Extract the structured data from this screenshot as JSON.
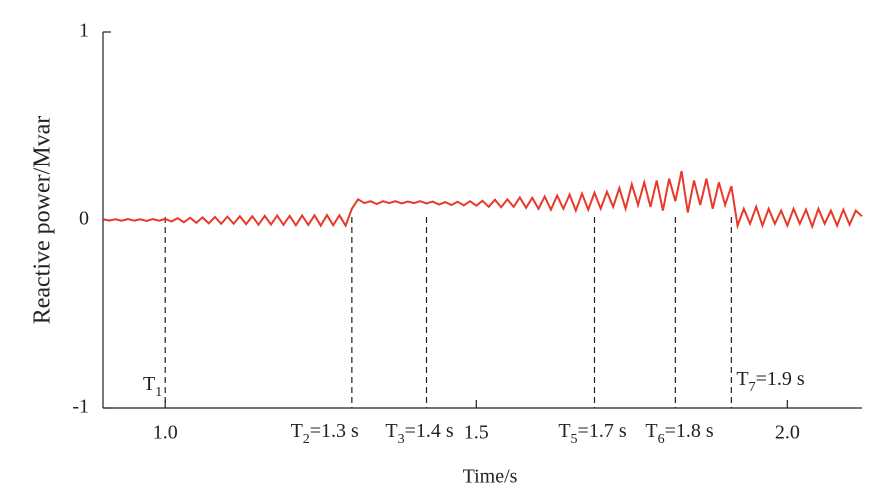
{
  "chart_data": {
    "type": "line",
    "x_label": "Time/s",
    "y_label": "Reactive power/Mvar",
    "xlim": [
      0.9,
      2.12
    ],
    "ylim": [
      -1,
      1
    ],
    "xticks": [
      {
        "value": 1,
        "label": "1.0"
      },
      {
        "value": 1.5,
        "label": "1.5"
      },
      {
        "value": 2,
        "label": "2.0"
      }
    ],
    "yticks": [
      -1,
      0,
      1
    ],
    "x": [
      0.9,
      0.91,
      0.92,
      0.93,
      0.94,
      0.95,
      0.96,
      0.97,
      0.98,
      0.99,
      1.0,
      1.01,
      1.02,
      1.03,
      1.04,
      1.05,
      1.06,
      1.07,
      1.08,
      1.09,
      1.1,
      1.11,
      1.12,
      1.13,
      1.14,
      1.15,
      1.16,
      1.17,
      1.18,
      1.19,
      1.2,
      1.21,
      1.22,
      1.23,
      1.24,
      1.25,
      1.26,
      1.27,
      1.28,
      1.29,
      1.3,
      1.31,
      1.32,
      1.33,
      1.34,
      1.35,
      1.36,
      1.37,
      1.38,
      1.39,
      1.4,
      1.41,
      1.42,
      1.43,
      1.44,
      1.45,
      1.46,
      1.47,
      1.48,
      1.49,
      1.5,
      1.51,
      1.52,
      1.53,
      1.54,
      1.55,
      1.56,
      1.57,
      1.58,
      1.59,
      1.6,
      1.61,
      1.62,
      1.63,
      1.64,
      1.65,
      1.66,
      1.67,
      1.68,
      1.69,
      1.7,
      1.71,
      1.72,
      1.73,
      1.74,
      1.75,
      1.76,
      1.77,
      1.78,
      1.79,
      1.8,
      1.81,
      1.82,
      1.83,
      1.84,
      1.85,
      1.86,
      1.87,
      1.88,
      1.89,
      1.9,
      1.91,
      1.92,
      1.93,
      1.94,
      1.95,
      1.96,
      1.97,
      1.98,
      1.99,
      2.0,
      2.01,
      2.02,
      2.03,
      2.04,
      2.05,
      2.06,
      2.07,
      2.08,
      2.09,
      2.1,
      2.11,
      2.12
    ],
    "series": [
      {
        "color": "#e8392b",
        "values": [
          0.005,
          -0.003,
          0.004,
          -0.004,
          0.005,
          -0.003,
          0.004,
          -0.005,
          0.005,
          -0.004,
          0.006,
          -0.008,
          0.01,
          -0.012,
          0.012,
          -0.015,
          0.014,
          -0.018,
          0.016,
          -0.02,
          0.018,
          -0.02,
          0.02,
          -0.022,
          0.02,
          -0.025,
          0.022,
          -0.024,
          0.024,
          -0.026,
          0.022,
          -0.028,
          0.024,
          -0.026,
          0.025,
          -0.03,
          0.026,
          -0.028,
          0.025,
          -0.03,
          0.06,
          0.11,
          0.09,
          0.1,
          0.085,
          0.1,
          0.09,
          0.1,
          0.088,
          0.098,
          0.09,
          0.1,
          0.088,
          0.098,
          0.082,
          0.095,
          0.08,
          0.097,
          0.078,
          0.1,
          0.076,
          0.102,
          0.07,
          0.108,
          0.068,
          0.11,
          0.07,
          0.12,
          0.065,
          0.118,
          0.06,
          0.125,
          0.055,
          0.13,
          0.06,
          0.135,
          0.05,
          0.14,
          0.055,
          0.145,
          0.06,
          0.15,
          0.07,
          0.17,
          0.06,
          0.19,
          0.08,
          0.2,
          0.07,
          0.21,
          0.05,
          0.22,
          0.1,
          0.26,
          0.04,
          0.21,
          0.08,
          0.22,
          0.06,
          0.2,
          0.08,
          0.18,
          -0.03,
          0.06,
          -0.02,
          0.07,
          -0.03,
          0.06,
          -0.02,
          0.05,
          -0.03,
          0.06,
          -0.02,
          0.055,
          -0.035,
          0.06,
          -0.02,
          0.05,
          -0.03,
          0.055,
          -0.025,
          0.05,
          0.02
        ]
      }
    ],
    "markers": [
      {
        "text": "T",
        "sub": "1",
        "x": 1.0
      },
      {
        "text": "T",
        "sub": "2",
        "suffix": "=1.3 s",
        "x": 1.3
      },
      {
        "text": "T",
        "sub": "3",
        "suffix": "=1.4 s",
        "x": 1.42
      },
      {
        "text": "T",
        "sub": "5",
        "suffix": "=1.7 s",
        "x": 1.69
      },
      {
        "text": "T",
        "sub": "6",
        "suffix": "=1.8 s",
        "x": 1.82
      },
      {
        "text": "T",
        "sub": "7",
        "suffix": "=1.9 s",
        "x": 1.91
      }
    ]
  }
}
